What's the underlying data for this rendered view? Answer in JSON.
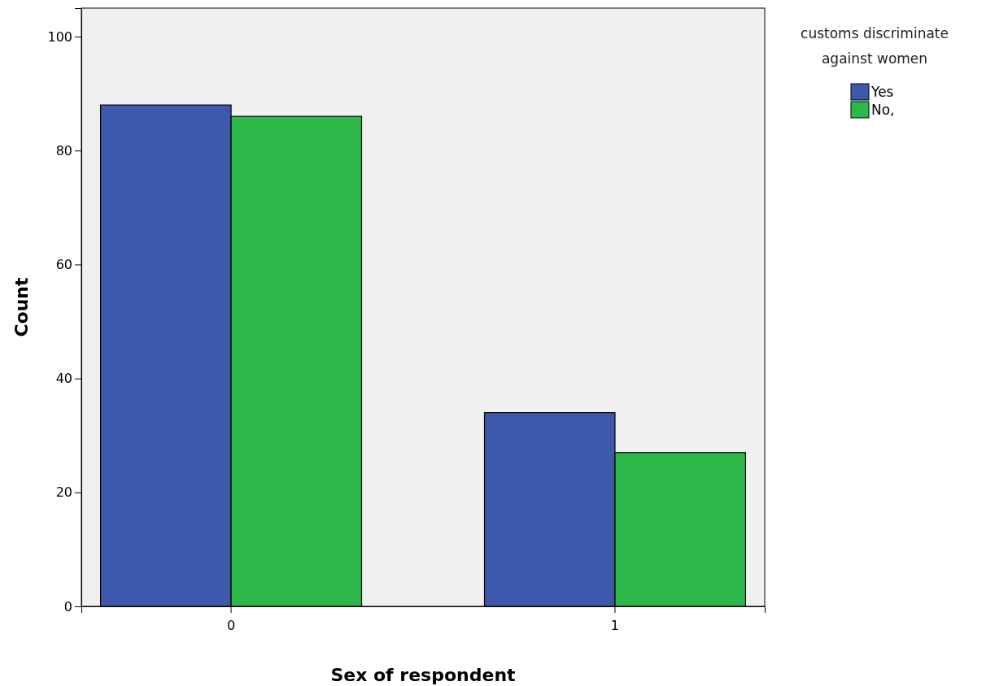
{
  "chart_data": {
    "type": "bar",
    "xlabel": "Sex of respondent",
    "ylabel": "Count",
    "legend_title": "customs discriminate against women",
    "categories": [
      "0",
      "1"
    ],
    "series": [
      {
        "name": "Yes",
        "color": "#3e58ac",
        "values": [
          88,
          34
        ]
      },
      {
        "name": "No,",
        "color": "#2db84b",
        "values": [
          86,
          27
        ]
      }
    ],
    "ylim": [
      0,
      105
    ],
    "yticks": [
      0,
      20,
      40,
      60,
      80,
      100
    ],
    "grid": false,
    "legend": "top right"
  }
}
